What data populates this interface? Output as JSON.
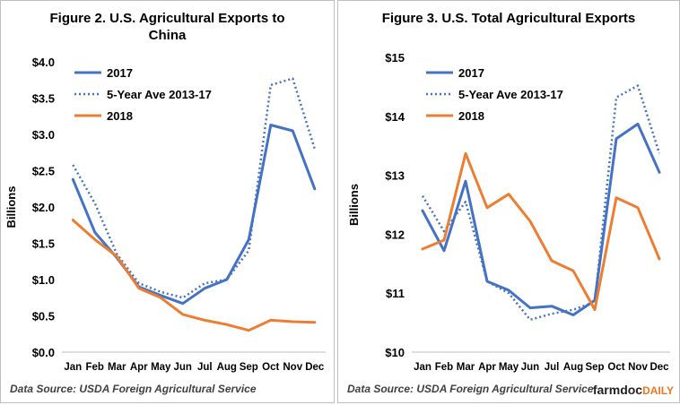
{
  "charts": [
    {
      "title": "Figure 2. U.S. Agricultural Exports to China",
      "source": "Data Source: USDA Foreign Agricultural Service",
      "chart_data": {
        "type": "line",
        "title": "Figure 2. U.S. Agricultural Exports to China",
        "ylabel": "Billions",
        "xlabel": "",
        "categories": [
          "Jan",
          "Feb",
          "Mar",
          "Apr",
          "May",
          "Jun",
          "Jul",
          "Aug",
          "Sep",
          "Oct",
          "Nov",
          "Dec"
        ],
        "ylim": [
          0,
          4.0
        ],
        "yticks": [
          0,
          0.5,
          1.0,
          1.5,
          2.0,
          2.5,
          3.0,
          3.5,
          4.0
        ],
        "ytick_labels": [
          "$0.0",
          "$0.5",
          "$1.0",
          "$1.5",
          "$2.0",
          "$2.5",
          "$3.0",
          "$3.5",
          "$4.0"
        ],
        "legend_position": "top-left",
        "grid": false,
        "series": [
          {
            "name": "2017",
            "color": "#4472c4",
            "style": "solid",
            "values": [
              2.38,
              1.65,
              1.3,
              0.9,
              0.78,
              0.67,
              0.88,
              1.0,
              1.55,
              3.13,
              3.05,
              2.25
            ]
          },
          {
            "name": "5-Year Ave 2013-17",
            "color": "#4472c4",
            "style": "dotted",
            "values": [
              2.58,
              2.05,
              1.35,
              0.95,
              0.83,
              0.75,
              0.95,
              1.0,
              1.4,
              3.68,
              3.77,
              2.8
            ]
          },
          {
            "name": "2018",
            "color": "#ed7d31",
            "style": "solid",
            "values": [
              1.82,
              1.55,
              1.32,
              0.88,
              0.75,
              0.52,
              0.44,
              0.38,
              0.3,
              0.44,
              0.42,
              0.41
            ]
          }
        ]
      }
    },
    {
      "title": "Figure 3. U.S. Total Agricultural Exports",
      "source": "Data Source: USDA Foreign Agricultural Service",
      "logo": {
        "main": "farmdoc",
        "sub": "DAILY"
      },
      "chart_data": {
        "type": "line",
        "title": "Figure 3. U.S. Total Agricultural Exports",
        "ylabel": "Billions",
        "xlabel": "",
        "categories": [
          "Jan",
          "Feb",
          "Mar",
          "Apr",
          "May",
          "Jun",
          "Jul",
          "Aug",
          "Sep",
          "Oct",
          "Nov",
          "Dec"
        ],
        "ylim": [
          10,
          15
        ],
        "yticks": [
          10,
          11,
          12,
          13,
          14,
          15
        ],
        "ytick_labels": [
          "$10",
          "$11",
          "$12",
          "$13",
          "$14",
          "$15"
        ],
        "legend_position": "top-left",
        "grid": false,
        "series": [
          {
            "name": "2017",
            "color": "#4472c4",
            "style": "solid",
            "values": [
              12.4,
              11.72,
              12.9,
              11.2,
              11.05,
              10.75,
              10.78,
              10.63,
              10.88,
              13.62,
              13.87,
              13.05
            ]
          },
          {
            "name": "5-Year Ave 2013-17",
            "color": "#4472c4",
            "style": "dotted",
            "values": [
              12.65,
              12.05,
              12.55,
              11.2,
              11.0,
              10.55,
              10.65,
              10.72,
              10.85,
              14.32,
              14.52,
              13.37
            ]
          },
          {
            "name": "2018",
            "color": "#ed7d31",
            "style": "solid",
            "values": [
              11.75,
              11.9,
              13.37,
              12.45,
              12.68,
              12.22,
              11.55,
              11.38,
              10.72,
              12.62,
              12.45,
              11.58
            ]
          }
        ]
      }
    }
  ]
}
